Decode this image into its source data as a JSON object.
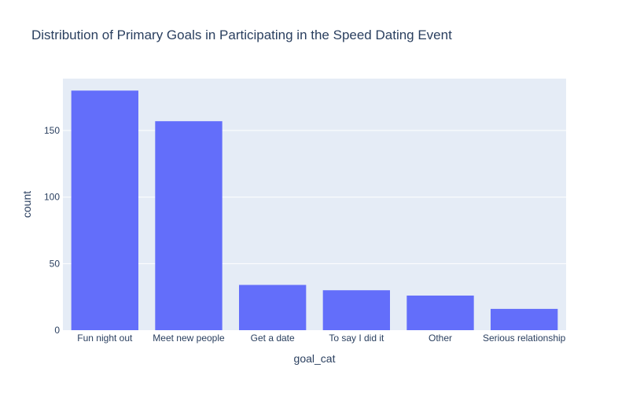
{
  "chart_data": {
    "type": "bar",
    "title": "Distribution of Primary Goals in Participating in the Speed Dating Event",
    "xlabel": "goal_cat",
    "ylabel": "count",
    "categories": [
      "Fun night out",
      "Meet new people",
      "Get a date",
      "To say I did it",
      "Other",
      "Serious relationship"
    ],
    "values": [
      180,
      157,
      34,
      30,
      26,
      16
    ],
    "ylim": [
      0,
      189
    ],
    "yticks": [
      0,
      50,
      100,
      150
    ],
    "grid": true,
    "legend": "none",
    "colors": {
      "bar": "#636efa",
      "plot_background": "#e5ecf6",
      "gridline": "#ffffff",
      "title_text": "#2a3f5f",
      "axis_text": "#2a3f5f"
    }
  }
}
